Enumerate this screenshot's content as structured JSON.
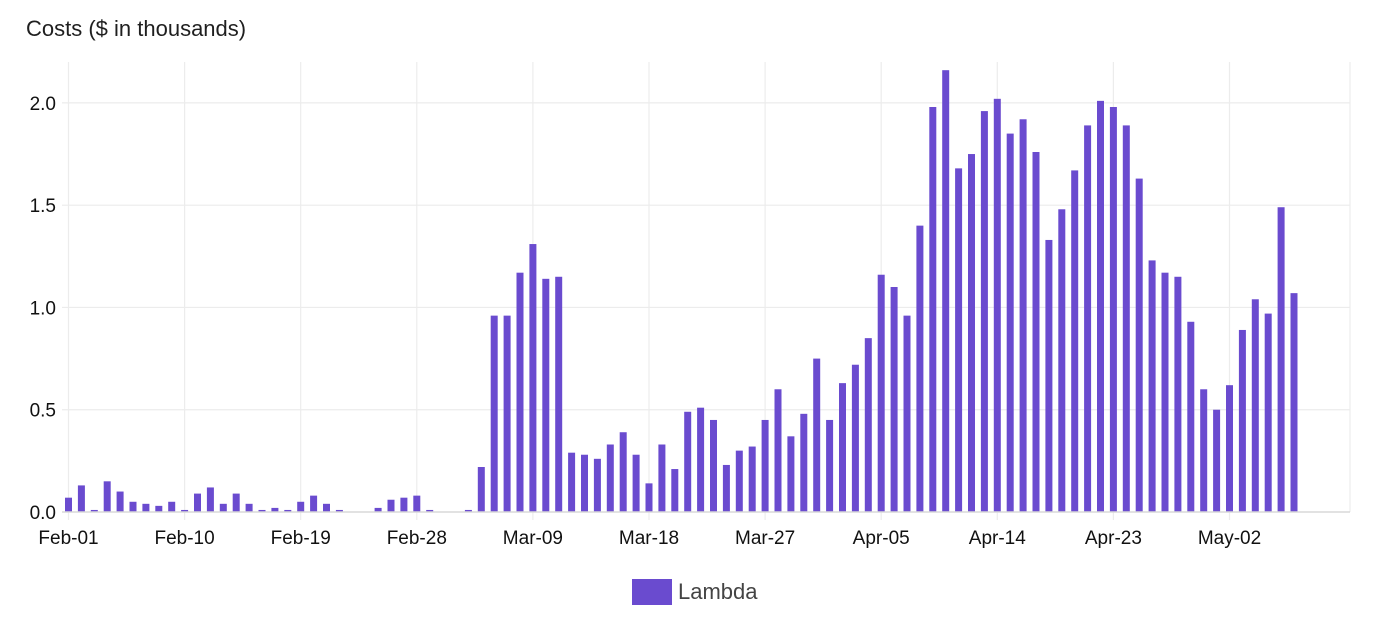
{
  "chart_data": {
    "type": "bar",
    "title": "Costs ($ in thousands)",
    "xlabel": "",
    "ylabel": "",
    "ylim": [
      0,
      2.2
    ],
    "yticks": [
      "0.0",
      "0.5",
      "1.0",
      "1.5",
      "2.0"
    ],
    "ytick_values": [
      0,
      0.5,
      1.0,
      1.5,
      2.0
    ],
    "x_tick_labels": [
      "Feb-01",
      "Feb-10",
      "Feb-19",
      "Feb-28",
      "Mar-09",
      "Mar-18",
      "Mar-27",
      "Apr-05",
      "Apr-14",
      "Apr-23",
      "May-02"
    ],
    "x_tick_every": 9,
    "start_label": "Feb-01",
    "grid": true,
    "legend_position": "bottom-center",
    "series": [
      {
        "name": "Lambda",
        "color": "#6a4bcf",
        "values": [
          0.07,
          0.13,
          0.01,
          0.15,
          0.1,
          0.05,
          0.04,
          0.03,
          0.05,
          0.01,
          0.09,
          0.12,
          0.04,
          0.09,
          0.04,
          0.01,
          0.02,
          0.01,
          0.05,
          0.08,
          0.04,
          0.01,
          0.0,
          0.0,
          0.02,
          0.06,
          0.07,
          0.08,
          0.01,
          0.0,
          0.0,
          0.01,
          0.22,
          0.96,
          0.96,
          1.17,
          1.31,
          1.14,
          1.15,
          0.29,
          0.28,
          0.26,
          0.33,
          0.39,
          0.28,
          0.14,
          0.33,
          0.21,
          0.49,
          0.51,
          0.45,
          0.23,
          0.3,
          0.32,
          0.45,
          0.6,
          0.37,
          0.48,
          0.75,
          0.45,
          0.63,
          0.72,
          0.85,
          1.16,
          1.1,
          0.96,
          1.4,
          1.98,
          2.16,
          1.68,
          1.75,
          1.96,
          2.02,
          1.85,
          1.92,
          1.76,
          1.33,
          1.48,
          1.67,
          1.89,
          2.01,
          1.98,
          1.89,
          1.63,
          1.23,
          1.17,
          1.15,
          0.93,
          0.6,
          0.5,
          0.62,
          0.89,
          1.04,
          0.97,
          1.49,
          1.07
        ]
      }
    ]
  },
  "legend": {
    "label": "Lambda",
    "swatch_color": "#6a4bcf"
  }
}
